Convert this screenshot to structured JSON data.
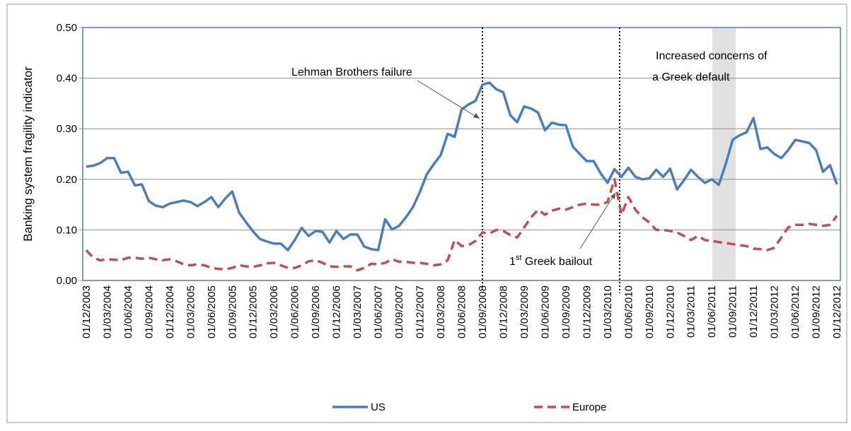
{
  "chart_data": {
    "type": "line",
    "y_label": "Banking system fragility indicator",
    "categories": [
      "01/12/2003",
      null,
      null,
      "01/03/2004",
      null,
      null,
      "01/06/2004",
      null,
      null,
      "01/09/2004",
      null,
      null,
      "01/12/2004",
      null,
      null,
      "01/03/2005",
      null,
      null,
      "01/06/2005",
      null,
      null,
      "01/09/2005",
      null,
      null,
      "01/12/2005",
      null,
      null,
      "01/03/2006",
      null,
      null,
      "01/06/2006",
      null,
      null,
      "01/09/2006",
      null,
      null,
      "01/12/2006",
      null,
      null,
      "01/03/2007",
      null,
      null,
      "01/06/2007",
      null,
      null,
      "01/09/2007",
      null,
      null,
      "01/12/2007",
      null,
      null,
      "01/03/2008",
      null,
      null,
      "01/06/2008",
      null,
      null,
      "01/09/2008",
      null,
      null,
      "01/12/2008",
      null,
      null,
      "01/03/2009",
      null,
      null,
      "01/06/2009",
      null,
      null,
      "01/09/2009",
      null,
      null,
      "01/12/2009",
      null,
      null,
      "01/03/2010",
      null,
      null,
      "01/06/2010",
      null,
      null,
      "01/09/2010",
      null,
      null,
      "01/12/2010",
      null,
      null,
      "01/03/2011",
      null,
      null,
      "01/06/2011",
      null,
      null,
      "01/09/2011",
      null,
      null,
      "01/12/2011",
      null,
      null,
      "01/03/2012",
      null,
      null,
      "01/06/2012",
      null,
      null,
      "01/09/2012",
      null,
      null,
      "01/12/2012"
    ],
    "series": [
      {
        "name": "US",
        "color": "#4a7ebb",
        "dash": false,
        "values": [
          0.225,
          0.227,
          0.232,
          0.242,
          0.242,
          0.213,
          0.215,
          0.188,
          0.19,
          0.157,
          0.148,
          0.145,
          0.152,
          0.155,
          0.158,
          0.155,
          0.147,
          0.155,
          0.165,
          0.145,
          0.162,
          0.176,
          0.134,
          0.115,
          0.097,
          0.082,
          0.077,
          0.073,
          0.073,
          0.06,
          0.08,
          0.104,
          0.088,
          0.098,
          0.096,
          0.075,
          0.098,
          0.082,
          0.091,
          0.091,
          0.067,
          0.062,
          0.06,
          0.121,
          0.101,
          0.108,
          0.125,
          0.145,
          0.175,
          0.21,
          0.23,
          0.248,
          0.29,
          0.284,
          0.338,
          0.348,
          0.355,
          0.387,
          0.391,
          0.378,
          0.372,
          0.327,
          0.313,
          0.344,
          0.34,
          0.332,
          0.297,
          0.312,
          0.308,
          0.307,
          0.265,
          0.25,
          0.236,
          0.236,
          0.212,
          0.193,
          0.22,
          0.205,
          0.223,
          0.205,
          0.2,
          0.202,
          0.219,
          0.205,
          0.221,
          0.18,
          0.198,
          0.219,
          0.205,
          0.193,
          0.2,
          0.189,
          0.23,
          0.278,
          0.287,
          0.293,
          0.321,
          0.26,
          0.263,
          0.25,
          0.242,
          0.258,
          0.278,
          0.275,
          0.272,
          0.258,
          0.215,
          0.228,
          0.19
        ]
      },
      {
        "name": "Europe",
        "color": "#c0504d",
        "dash": true,
        "values": [
          0.06,
          0.045,
          0.04,
          0.042,
          0.041,
          0.04,
          0.045,
          0.045,
          0.043,
          0.045,
          0.042,
          0.04,
          0.042,
          0.038,
          0.032,
          0.03,
          0.032,
          0.03,
          0.025,
          0.023,
          0.022,
          0.025,
          0.03,
          0.028,
          0.027,
          0.03,
          0.034,
          0.035,
          0.03,
          0.025,
          0.025,
          0.03,
          0.038,
          0.04,
          0.035,
          0.028,
          0.027,
          0.028,
          0.028,
          0.02,
          0.025,
          0.033,
          0.032,
          0.035,
          0.042,
          0.037,
          0.037,
          0.035,
          0.035,
          0.033,
          0.03,
          0.032,
          0.04,
          0.08,
          0.068,
          0.07,
          0.078,
          0.095,
          0.093,
          0.1,
          0.098,
          0.09,
          0.085,
          0.105,
          0.125,
          0.14,
          0.13,
          0.138,
          0.142,
          0.14,
          0.145,
          0.15,
          0.152,
          0.15,
          0.15,
          0.155,
          0.2,
          0.13,
          0.165,
          0.14,
          0.125,
          0.115,
          0.1,
          0.1,
          0.098,
          0.095,
          0.088,
          0.08,
          0.088,
          0.08,
          0.078,
          0.076,
          0.074,
          0.072,
          0.07,
          0.068,
          0.063,
          0.062,
          0.06,
          0.065,
          0.085,
          0.105,
          0.11,
          0.11,
          0.112,
          0.11,
          0.108,
          0.11,
          0.128
        ]
      }
    ],
    "ylim": [
      0,
      0.5
    ],
    "yticks": [
      {
        "value": 0,
        "label": "0.00"
      },
      {
        "value": 0.1,
        "label": "0.10"
      },
      {
        "value": 0.2,
        "label": "0.20"
      },
      {
        "value": 0.3,
        "label": "0.30"
      },
      {
        "value": 0.4,
        "label": "0.40"
      },
      {
        "value": 0.5,
        "label": "0.50"
      }
    ],
    "grid": true,
    "legend": "bottom",
    "annotations": {
      "lehman": "Lehman Brothers failure",
      "greek_concerns": [
        "Increased concerns of",
        "a Greek default"
      ],
      "greek_bailout": [
        "1",
        "st",
        " Greek bailout"
      ]
    }
  }
}
